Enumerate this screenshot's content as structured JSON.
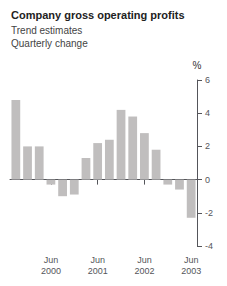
{
  "chart_data": {
    "type": "bar",
    "title": "Company gross operating profits",
    "subtitle": "Trend estimates\nQuarterly change",
    "y_label": "%",
    "categories": [
      null,
      null,
      null,
      "Jun\n2000",
      null,
      null,
      null,
      "Jun\n2001",
      null,
      null,
      null,
      "Jun\n2002",
      null,
      null,
      null,
      "Jun\n2003"
    ],
    "values": [
      4.8,
      2.0,
      2.0,
      -0.3,
      -1.0,
      -0.9,
      1.3,
      2.2,
      2.4,
      4.2,
      3.8,
      2.8,
      1.8,
      -0.3,
      -0.6,
      -2.3
    ],
    "color": "#c0bebe",
    "ylim": [
      -4,
      6
    ],
    "yticks": [
      -4,
      -2,
      0,
      2,
      4,
      6
    ],
    "grid": false
  }
}
